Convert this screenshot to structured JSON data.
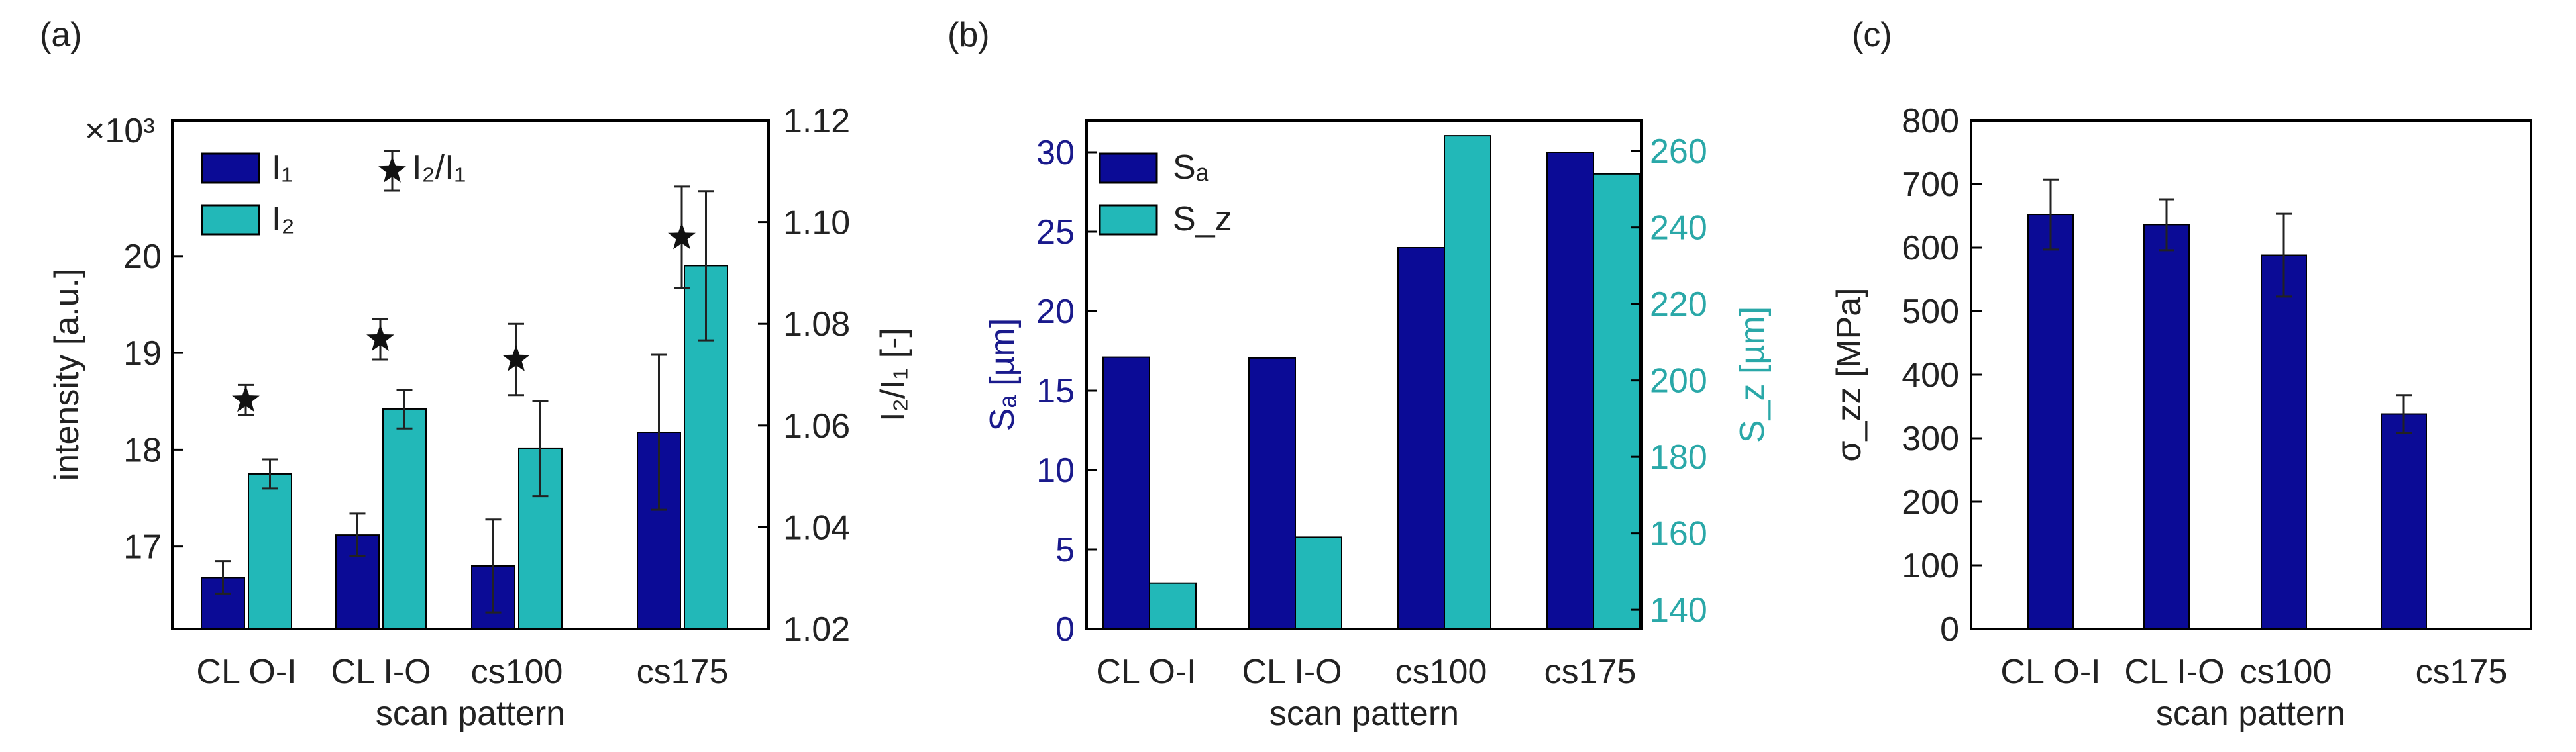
{
  "colors": {
    "dark_blue": "#0b0b96",
    "teal": "#22b8b8",
    "axis": "#000000",
    "text": "#222222"
  },
  "chart_data": [
    {
      "panel": "(a)",
      "type": "bar",
      "xlabel": "scan pattern",
      "ylabel": "intensity [a.u.]",
      "multiplier": "×10³",
      "ylabel_right": "I₂/I₁ [-]",
      "categories": [
        "CL O-I",
        "CL I-O",
        "cs100",
        "cs175"
      ],
      "ylim": [
        16.15,
        21.4
      ],
      "yticks": [
        17,
        18,
        19,
        20
      ],
      "ylim_right": [
        1.02,
        1.12
      ],
      "yticks_right": [
        "1.02",
        "1.04",
        "1.06",
        "1.08",
        "1.10",
        "1.12"
      ],
      "legend": {
        "position": "top-left",
        "I1": "I₁",
        "I2": "I₂",
        "ratio": "I₂/I₁"
      },
      "series": [
        {
          "name": "I₁",
          "color": "#0b0b96",
          "values": [
            16.68,
            17.12,
            16.8,
            18.18
          ],
          "err": [
            0.17,
            0.22,
            0.48,
            0.8
          ]
        },
        {
          "name": "I₂",
          "color": "#22b8b8",
          "values": [
            17.75,
            18.42,
            18.01,
            19.9
          ],
          "err": [
            0.15,
            0.2,
            0.49,
            0.77
          ]
        }
      ],
      "ratio": {
        "name": "I₂/I₁",
        "values": [
          1.065,
          1.077,
          1.073,
          1.097
        ],
        "err": [
          0.003,
          0.004,
          0.007,
          0.01
        ]
      }
    },
    {
      "panel": "(b)",
      "type": "bar",
      "xlabel": "scan pattern",
      "ylabel": "Sₐ [µm]",
      "ylabel_right": "S_z [µm]",
      "categories": [
        "CL O-I",
        "CL I-O",
        "cs100",
        "cs175"
      ],
      "ylim": [
        0,
        32
      ],
      "yticks": [
        0,
        5,
        10,
        15,
        20,
        25,
        30
      ],
      "ylim_right": [
        135,
        268
      ],
      "yticks_right": [
        140,
        160,
        180,
        200,
        220,
        240,
        260
      ],
      "legend": {
        "position": "top-left",
        "Sa": "Sₐ",
        "Sz": "S_z"
      },
      "series": [
        {
          "name": "Sₐ",
          "color": "#0b0b96",
          "values": [
            17.1,
            17.05,
            24.0,
            30.0
          ]
        },
        {
          "name": "S_z",
          "color": "#22b8b8",
          "values": [
            147,
            159,
            264,
            254
          ]
        }
      ]
    },
    {
      "panel": "(c)",
      "type": "bar",
      "xlabel": "scan pattern",
      "ylabel": "σ_zz [MPa]",
      "categories": [
        "CL O-I",
        "CL I-O",
        "cs100",
        "cs175"
      ],
      "ylim": [
        0,
        800
      ],
      "yticks": [
        0,
        100,
        200,
        300,
        400,
        500,
        600,
        700,
        800
      ],
      "series": [
        {
          "name": "σzz",
          "color": "#0b0b96",
          "values": [
            652,
            636,
            588,
            338
          ],
          "err": [
            55,
            40,
            65,
            30
          ]
        }
      ]
    }
  ]
}
